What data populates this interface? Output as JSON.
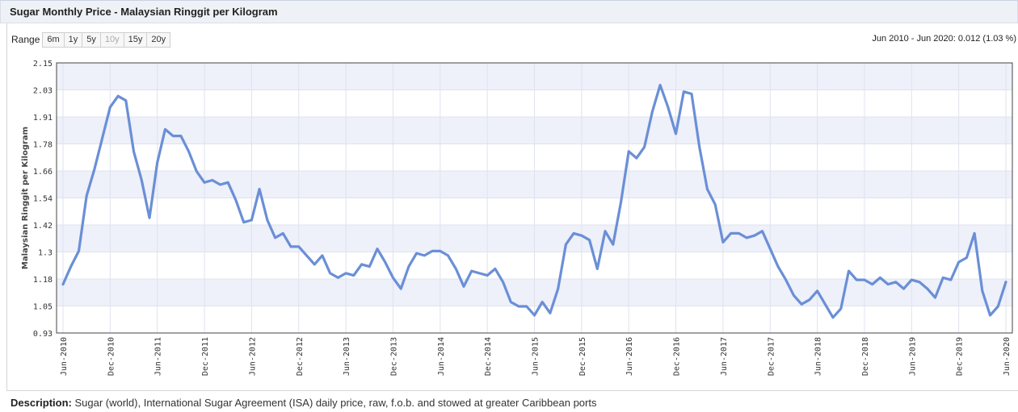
{
  "header": {
    "title": "Sugar Monthly Price - Malaysian Ringgit per Kilogram"
  },
  "range": {
    "label": "Range",
    "buttons": [
      {
        "label": "6m",
        "disabled": false
      },
      {
        "label": "1y",
        "disabled": false
      },
      {
        "label": "5y",
        "disabled": false
      },
      {
        "label": "10y",
        "disabled": true
      },
      {
        "label": "15y",
        "disabled": false
      },
      {
        "label": "20y",
        "disabled": false
      }
    ]
  },
  "summary": "Jun 2010 - Jun 2020: 0.012 (1.03 %)",
  "description": {
    "label": "Description:",
    "text": "Sugar (world), International Sugar Agreement (ISA) daily price, raw, f.o.b. and stowed at greater Caribbean ports"
  },
  "colors": {
    "line": "#6a8fd6",
    "band": "#eef0fa",
    "grid": "#dfe3ee"
  },
  "chart_data": {
    "type": "line",
    "ylabel": "Malaysian Ringgit per Kilogram",
    "ylim": [
      0.93,
      2.15
    ],
    "yticks": [
      "2.15",
      "2.03",
      "1.91",
      "1.78",
      "1.66",
      "1.54",
      "1.42",
      "1.3",
      "1.18",
      "1.05",
      "0.93"
    ],
    "xticks": [
      "Jun-2010",
      "Dec-2010",
      "Jun-2011",
      "Dec-2011",
      "Jun-2012",
      "Dec-2012",
      "Jun-2013",
      "Dec-2013",
      "Jun-2014",
      "Dec-2014",
      "Jun-2015",
      "Dec-2015",
      "Jun-2016",
      "Dec-2016",
      "Jun-2017",
      "Dec-2017",
      "Jun-2018",
      "Dec-2018",
      "Jun-2019",
      "Dec-2019",
      "Jun-2020"
    ],
    "x_start": "Jun-2010",
    "x_end": "Jun-2020",
    "grid": true,
    "series": [
      {
        "values": [
          1.15,
          1.23,
          1.3,
          1.55,
          1.67,
          1.81,
          1.95,
          2.0,
          1.98,
          1.75,
          1.62,
          1.45,
          1.7,
          1.85,
          1.82,
          1.82,
          1.75,
          1.66,
          1.61,
          1.62,
          1.6,
          1.61,
          1.53,
          1.43,
          1.44,
          1.58,
          1.44,
          1.36,
          1.38,
          1.32,
          1.32,
          1.28,
          1.24,
          1.28,
          1.2,
          1.18,
          1.2,
          1.19,
          1.24,
          1.23,
          1.31,
          1.25,
          1.18,
          1.13,
          1.23,
          1.29,
          1.28,
          1.3,
          1.3,
          1.28,
          1.22,
          1.14,
          1.21,
          1.2,
          1.19,
          1.22,
          1.16,
          1.07,
          1.05,
          1.05,
          1.01,
          1.07,
          1.02,
          1.13,
          1.33,
          1.38,
          1.37,
          1.35,
          1.22,
          1.39,
          1.33,
          1.52,
          1.75,
          1.72,
          1.77,
          1.93,
          2.05,
          1.95,
          1.83,
          2.02,
          2.01,
          1.77,
          1.58,
          1.51,
          1.34,
          1.38,
          1.38,
          1.36,
          1.37,
          1.39,
          1.31,
          1.23,
          1.17,
          1.1,
          1.06,
          1.08,
          1.12,
          1.06,
          1.0,
          1.04,
          1.21,
          1.17,
          1.17,
          1.15,
          1.18,
          1.15,
          1.16,
          1.13,
          1.17,
          1.16,
          1.13,
          1.09,
          1.18,
          1.17,
          1.25,
          1.27,
          1.38,
          1.12,
          1.01,
          1.05,
          1.16
        ]
      }
    ]
  }
}
